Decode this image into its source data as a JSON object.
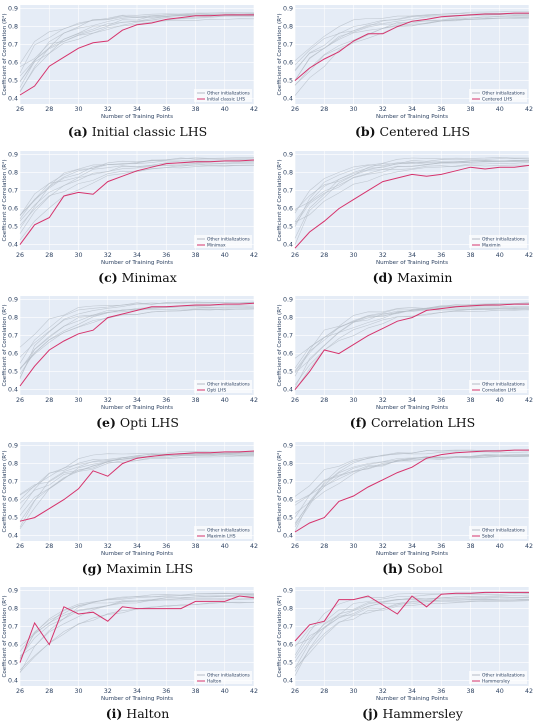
{
  "colors": {
    "highlight": "#d6336c",
    "others": "#b4bcc6",
    "plot_bg": "#e5ecf6",
    "grid": "#ffffff"
  },
  "chart_data": [
    {
      "type": "line",
      "caption_letter": "(a)",
      "caption_text": "Initial classic LHS",
      "xlabel": "Number of Training Points",
      "ylabel": "Coefficient of Correlation (R²)",
      "xlim": [
        26,
        42
      ],
      "ylim": [
        0.37,
        0.92
      ],
      "xticks": [
        26,
        28,
        30,
        32,
        34,
        36,
        38,
        40,
        42
      ],
      "yticks": [
        0.4,
        0.5,
        0.6,
        0.7,
        0.8,
        0.9
      ],
      "legend": [
        "Other initializations",
        "Initial classic LHS"
      ],
      "legend_position": "bottom-right",
      "series": [
        {
          "name": "Initial classic LHS",
          "x": [
            26,
            27,
            28,
            29,
            30,
            31,
            32,
            33,
            34,
            35,
            36,
            37,
            38,
            39,
            40,
            41,
            42
          ],
          "y": [
            0.42,
            0.47,
            0.58,
            0.63,
            0.68,
            0.71,
            0.72,
            0.78,
            0.81,
            0.82,
            0.84,
            0.85,
            0.86,
            0.86,
            0.865,
            0.865,
            0.865
          ]
        }
      ]
    },
    {
      "type": "line",
      "caption_letter": "(b)",
      "caption_text": "Centered LHS",
      "xlabel": "Number of Training Points",
      "ylabel": "Coefficient of Correlation (R²)",
      "xlim": [
        26,
        42
      ],
      "ylim": [
        0.37,
        0.92
      ],
      "xticks": [
        26,
        28,
        30,
        32,
        34,
        36,
        38,
        40,
        42
      ],
      "yticks": [
        0.4,
        0.5,
        0.6,
        0.7,
        0.8,
        0.9
      ],
      "legend": [
        "Other initializations",
        "Centered LHS"
      ],
      "legend_position": "bottom-right",
      "series": [
        {
          "name": "Centered LHS",
          "x": [
            26,
            27,
            28,
            29,
            30,
            31,
            32,
            33,
            34,
            35,
            36,
            37,
            38,
            39,
            40,
            41,
            42
          ],
          "y": [
            0.5,
            0.57,
            0.62,
            0.66,
            0.72,
            0.76,
            0.76,
            0.8,
            0.83,
            0.84,
            0.855,
            0.86,
            0.865,
            0.87,
            0.87,
            0.875,
            0.875
          ]
        }
      ]
    },
    {
      "type": "line",
      "caption_letter": "(c)",
      "caption_text": "Minimax",
      "xlabel": "Number of Training Points",
      "ylabel": "Coefficient of Correlation (R²)",
      "xlim": [
        26,
        42
      ],
      "ylim": [
        0.37,
        0.92
      ],
      "xticks": [
        26,
        28,
        30,
        32,
        34,
        36,
        38,
        40,
        42
      ],
      "yticks": [
        0.4,
        0.5,
        0.6,
        0.7,
        0.8,
        0.9
      ],
      "legend": [
        "Other initializations",
        "Minimax"
      ],
      "legend_position": "bottom-right",
      "series": [
        {
          "name": "Minimax",
          "x": [
            26,
            27,
            28,
            29,
            30,
            31,
            32,
            33,
            34,
            35,
            36,
            37,
            38,
            39,
            40,
            41,
            42
          ],
          "y": [
            0.4,
            0.51,
            0.55,
            0.67,
            0.69,
            0.68,
            0.75,
            0.78,
            0.81,
            0.83,
            0.85,
            0.855,
            0.86,
            0.86,
            0.865,
            0.865,
            0.87
          ]
        }
      ]
    },
    {
      "type": "line",
      "caption_letter": "(d)",
      "caption_text": "Maximin",
      "xlabel": "Number of Training Points",
      "ylabel": "Coefficient of Correlation (R²)",
      "xlim": [
        26,
        42
      ],
      "ylim": [
        0.37,
        0.92
      ],
      "xticks": [
        26,
        28,
        30,
        32,
        34,
        36,
        38,
        40,
        42
      ],
      "yticks": [
        0.4,
        0.5,
        0.6,
        0.7,
        0.8,
        0.9
      ],
      "legend": [
        "Other initializations",
        "Maximin"
      ],
      "legend_position": "bottom-right",
      "series": [
        {
          "name": "Maximin",
          "x": [
            26,
            27,
            28,
            29,
            30,
            31,
            32,
            33,
            34,
            35,
            36,
            37,
            38,
            39,
            40,
            41,
            42
          ],
          "y": [
            0.38,
            0.47,
            0.53,
            0.6,
            0.65,
            0.7,
            0.75,
            0.77,
            0.79,
            0.78,
            0.79,
            0.81,
            0.83,
            0.82,
            0.83,
            0.83,
            0.84
          ]
        }
      ]
    },
    {
      "type": "line",
      "caption_letter": "(e)",
      "caption_text": "Opti LHS",
      "xlabel": "Number of Training Points",
      "ylabel": "Coefficient of Correlation (R²)",
      "xlim": [
        26,
        42
      ],
      "ylim": [
        0.37,
        0.92
      ],
      "xticks": [
        26,
        28,
        30,
        32,
        34,
        36,
        38,
        40,
        42
      ],
      "yticks": [
        0.4,
        0.5,
        0.6,
        0.7,
        0.8,
        0.9
      ],
      "legend": [
        "Other initializations",
        "Opti LHS"
      ],
      "legend_position": "bottom-right",
      "series": [
        {
          "name": "Opti LHS",
          "x": [
            26,
            27,
            28,
            29,
            30,
            31,
            32,
            33,
            34,
            35,
            36,
            37,
            38,
            39,
            40,
            41,
            42
          ],
          "y": [
            0.42,
            0.53,
            0.62,
            0.67,
            0.71,
            0.73,
            0.8,
            0.82,
            0.84,
            0.86,
            0.86,
            0.865,
            0.87,
            0.87,
            0.875,
            0.875,
            0.88
          ]
        }
      ]
    },
    {
      "type": "line",
      "caption_letter": "(f)",
      "caption_text": "Correlation LHS",
      "xlabel": "Number of Training Points",
      "ylabel": "Coefficient of Correlation (R²)",
      "xlim": [
        26,
        42
      ],
      "ylim": [
        0.37,
        0.92
      ],
      "xticks": [
        26,
        28,
        30,
        32,
        34,
        36,
        38,
        40,
        42
      ],
      "yticks": [
        0.4,
        0.5,
        0.6,
        0.7,
        0.8,
        0.9
      ],
      "legend": [
        "Other initializations",
        "Correlation LHS"
      ],
      "legend_position": "bottom-right",
      "series": [
        {
          "name": "Correlation LHS",
          "x": [
            26,
            27,
            28,
            29,
            30,
            31,
            32,
            33,
            34,
            35,
            36,
            37,
            38,
            39,
            40,
            41,
            42
          ],
          "y": [
            0.4,
            0.5,
            0.62,
            0.6,
            0.65,
            0.7,
            0.74,
            0.78,
            0.8,
            0.84,
            0.85,
            0.86,
            0.865,
            0.87,
            0.87,
            0.875,
            0.875
          ]
        }
      ]
    },
    {
      "type": "line",
      "caption_letter": "(g)",
      "caption_text": "Maximin LHS",
      "xlabel": "Number of Training Points",
      "ylabel": "Coefficient of Correlation (R²)",
      "xlim": [
        26,
        42
      ],
      "ylim": [
        0.37,
        0.92
      ],
      "xticks": [
        26,
        28,
        30,
        32,
        34,
        36,
        38,
        40,
        42
      ],
      "yticks": [
        0.4,
        0.5,
        0.6,
        0.7,
        0.8,
        0.9
      ],
      "legend": [
        "Other initializations",
        "Maximin LHS"
      ],
      "legend_position": "bottom-right",
      "series": [
        {
          "name": "Maximin LHS",
          "x": [
            26,
            27,
            28,
            29,
            30,
            31,
            32,
            33,
            34,
            35,
            36,
            37,
            38,
            39,
            40,
            41,
            42
          ],
          "y": [
            0.48,
            0.5,
            0.55,
            0.6,
            0.66,
            0.76,
            0.73,
            0.8,
            0.83,
            0.84,
            0.85,
            0.855,
            0.86,
            0.86,
            0.865,
            0.865,
            0.87
          ]
        }
      ]
    },
    {
      "type": "line",
      "caption_letter": "(h)",
      "caption_text": "Sobol",
      "xlabel": "Number of Training Points",
      "ylabel": "Coefficient of Correlation (R²)",
      "xlim": [
        26,
        42
      ],
      "ylim": [
        0.37,
        0.92
      ],
      "xticks": [
        26,
        28,
        30,
        32,
        34,
        36,
        38,
        40,
        42
      ],
      "yticks": [
        0.4,
        0.5,
        0.6,
        0.7,
        0.8,
        0.9
      ],
      "legend": [
        "Other initializations",
        "Sobol"
      ],
      "legend_position": "bottom-right",
      "series": [
        {
          "name": "Sobol",
          "x": [
            26,
            27,
            28,
            29,
            30,
            31,
            32,
            33,
            34,
            35,
            36,
            37,
            38,
            39,
            40,
            41,
            42
          ],
          "y": [
            0.42,
            0.47,
            0.5,
            0.59,
            0.62,
            0.67,
            0.71,
            0.75,
            0.78,
            0.83,
            0.85,
            0.86,
            0.865,
            0.87,
            0.87,
            0.875,
            0.875
          ]
        }
      ]
    },
    {
      "type": "line",
      "caption_letter": "(i)",
      "caption_text": "Halton",
      "xlabel": "Number of Training Points",
      "ylabel": "Coefficient of Correlation (R²)",
      "xlim": [
        26,
        42
      ],
      "ylim": [
        0.37,
        0.92
      ],
      "xticks": [
        26,
        28,
        30,
        32,
        34,
        36,
        38,
        40,
        42
      ],
      "yticks": [
        0.4,
        0.5,
        0.6,
        0.7,
        0.8,
        0.9
      ],
      "legend": [
        "Other initializations",
        "Halton"
      ],
      "legend_position": "bottom-right",
      "series": [
        {
          "name": "Halton",
          "x": [
            26,
            27,
            28,
            29,
            30,
            31,
            32,
            33,
            34,
            35,
            36,
            37,
            38,
            39,
            40,
            41,
            42
          ],
          "y": [
            0.5,
            0.72,
            0.6,
            0.81,
            0.77,
            0.78,
            0.73,
            0.81,
            0.8,
            0.8,
            0.8,
            0.8,
            0.84,
            0.84,
            0.84,
            0.87,
            0.86
          ]
        }
      ]
    },
    {
      "type": "line",
      "caption_letter": "(j)",
      "caption_text": "Hammersley",
      "xlabel": "Number of Training Points",
      "ylabel": "Coefficient of Correlation (R²)",
      "xlim": [
        26,
        42
      ],
      "ylim": [
        0.37,
        0.92
      ],
      "xticks": [
        26,
        28,
        30,
        32,
        34,
        36,
        38,
        40,
        42
      ],
      "yticks": [
        0.4,
        0.5,
        0.6,
        0.7,
        0.8,
        0.9
      ],
      "legend": [
        "Other initializations",
        "Hammersley"
      ],
      "legend_position": "bottom-right",
      "series": [
        {
          "name": "Hammersley",
          "x": [
            26,
            27,
            28,
            29,
            30,
            31,
            32,
            33,
            34,
            35,
            36,
            37,
            38,
            39,
            40,
            41,
            42
          ],
          "y": [
            0.62,
            0.71,
            0.73,
            0.85,
            0.85,
            0.87,
            0.82,
            0.77,
            0.87,
            0.81,
            0.88,
            0.885,
            0.885,
            0.89,
            0.89,
            0.89,
            0.89
          ]
        }
      ]
    }
  ]
}
